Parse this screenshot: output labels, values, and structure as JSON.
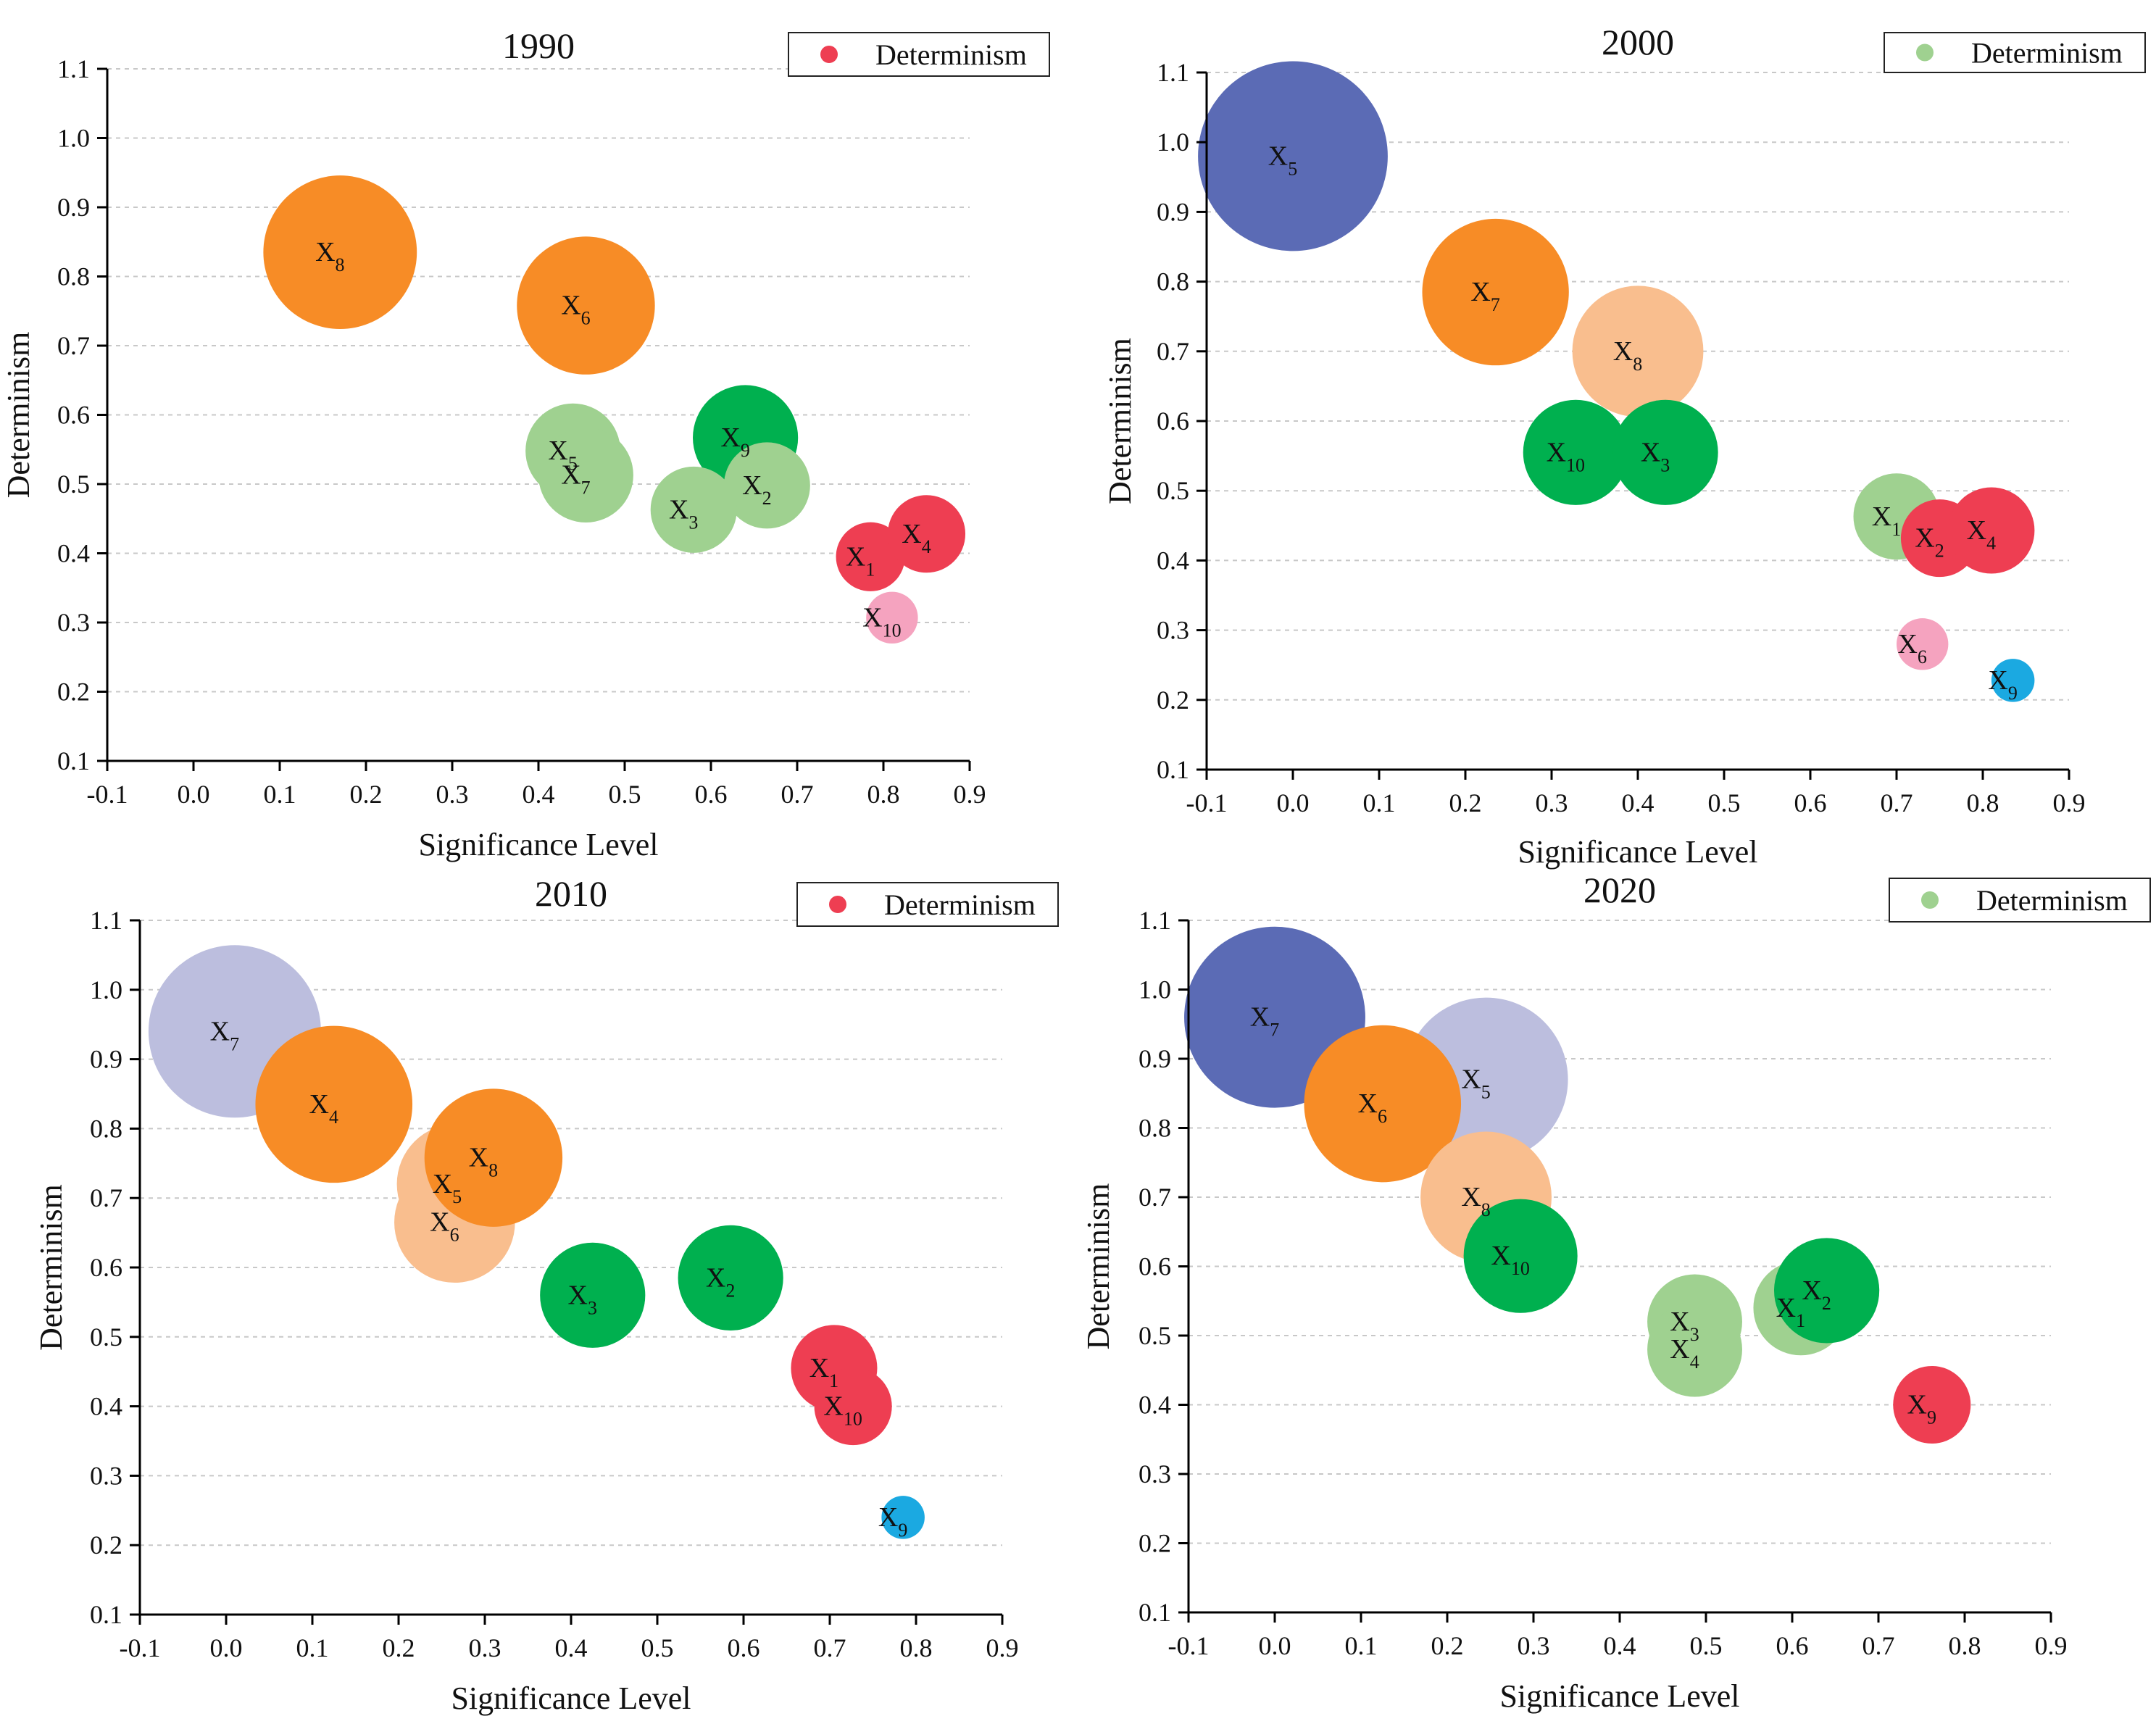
{
  "chart_data": [
    {
      "type": "bubble",
      "title": "1990",
      "xlabel": "Significance Level",
      "ylabel": "Determinism",
      "xlim": [
        -0.1,
        0.9
      ],
      "ylim": [
        0.1,
        1.1
      ],
      "xticks": [
        "-0.1",
        "0.0",
        "0.1",
        "0.2",
        "0.3",
        "0.4",
        "0.5",
        "0.6",
        "0.7",
        "0.8",
        "0.9"
      ],
      "yticks": [
        "0.1",
        "0.2",
        "0.3",
        "0.4",
        "0.5",
        "0.6",
        "0.7",
        "0.8",
        "0.9",
        "1.0",
        "1.1"
      ],
      "grid": true,
      "legend": {
        "label": "Determinism",
        "color": "#ee3e52",
        "position": "top-right"
      },
      "points": [
        {
          "label": "X",
          "sub": "8",
          "x": 0.17,
          "y": 0.835,
          "size": 0.089,
          "color": "#f78c26"
        },
        {
          "label": "X",
          "sub": "6",
          "x": 0.455,
          "y": 0.758,
          "size": 0.08,
          "color": "#f78c26"
        },
        {
          "label": "X",
          "sub": "5",
          "x": 0.44,
          "y": 0.548,
          "size": 0.055,
          "color": "#9fd190"
        },
        {
          "label": "X",
          "sub": "7",
          "x": 0.455,
          "y": 0.513,
          "size": 0.055,
          "color": "#9fd190"
        },
        {
          "label": "X",
          "sub": "9",
          "x": 0.64,
          "y": 0.567,
          "size": 0.061,
          "color": "#00b04f"
        },
        {
          "label": "X",
          "sub": "2",
          "x": 0.665,
          "y": 0.498,
          "size": 0.05,
          "color": "#9fd190"
        },
        {
          "label": "X",
          "sub": "3",
          "x": 0.58,
          "y": 0.463,
          "size": 0.05,
          "color": "#9fd190"
        },
        {
          "label": "X",
          "sub": "1",
          "x": 0.785,
          "y": 0.395,
          "size": 0.04,
          "color": "#ee3e52"
        },
        {
          "label": "X",
          "sub": "4",
          "x": 0.85,
          "y": 0.428,
          "size": 0.045,
          "color": "#ee3e52"
        },
        {
          "label": "X",
          "sub": "10",
          "x": 0.81,
          "y": 0.307,
          "size": 0.03,
          "color": "#f5a3bf"
        }
      ]
    },
    {
      "type": "bubble",
      "title": "2000",
      "xlabel": "Significance Level",
      "ylabel": "Determinism",
      "xlim": [
        -0.1,
        0.9
      ],
      "ylim": [
        0.1,
        1.1
      ],
      "xticks": [
        "-0.1",
        "0.0",
        "0.1",
        "0.2",
        "0.3",
        "0.4",
        "0.5",
        "0.6",
        "0.7",
        "0.8",
        "0.9"
      ],
      "yticks": [
        "0.1",
        "0.2",
        "0.3",
        "0.4",
        "0.5",
        "0.6",
        "0.7",
        "0.8",
        "0.9",
        "1.0",
        "1.1"
      ],
      "grid": true,
      "legend": {
        "label": "Determinism",
        "color": "#9fd190",
        "position": "top-right"
      },
      "points": [
        {
          "label": "X",
          "sub": "5",
          "x": 0.0,
          "y": 0.98,
          "size": 0.11,
          "color": "#5b6bb5"
        },
        {
          "label": "X",
          "sub": "7",
          "x": 0.235,
          "y": 0.785,
          "size": 0.085,
          "color": "#f78c26"
        },
        {
          "label": "X",
          "sub": "8",
          "x": 0.4,
          "y": 0.7,
          "size": 0.076,
          "color": "#f9be8e"
        },
        {
          "label": "X",
          "sub": "10",
          "x": 0.328,
          "y": 0.555,
          "size": 0.061,
          "color": "#00b04f"
        },
        {
          "label": "X",
          "sub": "3",
          "x": 0.432,
          "y": 0.555,
          "size": 0.061,
          "color": "#00b04f"
        },
        {
          "label": "X",
          "sub": "1",
          "x": 0.7,
          "y": 0.463,
          "size": 0.05,
          "color": "#9fd190"
        },
        {
          "label": "X",
          "sub": "2",
          "x": 0.75,
          "y": 0.432,
          "size": 0.045,
          "color": "#ee3e52"
        },
        {
          "label": "X",
          "sub": "4",
          "x": 0.81,
          "y": 0.443,
          "size": 0.05,
          "color": "#ee3e52"
        },
        {
          "label": "X",
          "sub": "6",
          "x": 0.73,
          "y": 0.28,
          "size": 0.03,
          "color": "#f5a3bf"
        },
        {
          "label": "X",
          "sub": "9",
          "x": 0.835,
          "y": 0.228,
          "size": 0.025,
          "color": "#1ba9e1"
        }
      ]
    },
    {
      "type": "bubble",
      "title": "2010",
      "xlabel": "Significance Level",
      "ylabel": "Determinism",
      "xlim": [
        -0.1,
        0.9
      ],
      "ylim": [
        0.1,
        1.1
      ],
      "xticks": [
        "-0.1",
        "0.0",
        "0.1",
        "0.2",
        "0.3",
        "0.4",
        "0.5",
        "0.6",
        "0.7",
        "0.8",
        "0.9"
      ],
      "yticks": [
        "0.1",
        "0.2",
        "0.3",
        "0.4",
        "0.5",
        "0.6",
        "0.7",
        "0.8",
        "0.9",
        "1.0",
        "1.1"
      ],
      "grid": true,
      "legend": {
        "label": "Determinism",
        "color": "#ee3e52",
        "position": "top-right"
      },
      "points": [
        {
          "label": "X",
          "sub": "7",
          "x": 0.01,
          "y": 0.94,
          "size": 0.1,
          "color": "#bcbede"
        },
        {
          "label": "X",
          "sub": "4",
          "x": 0.125,
          "y": 0.835,
          "size": 0.091,
          "color": "#f78c26"
        },
        {
          "label": "X",
          "sub": "5",
          "x": 0.268,
          "y": 0.72,
          "size": 0.07,
          "color": "#f9be8e"
        },
        {
          "label": "X",
          "sub": "6",
          "x": 0.265,
          "y": 0.665,
          "size": 0.07,
          "color": "#f9be8e"
        },
        {
          "label": "X",
          "sub": "8",
          "x": 0.31,
          "y": 0.758,
          "size": 0.08,
          "color": "#f78c26"
        },
        {
          "label": "X",
          "sub": "3",
          "x": 0.425,
          "y": 0.56,
          "size": 0.061,
          "color": "#00b04f"
        },
        {
          "label": "X",
          "sub": "2",
          "x": 0.585,
          "y": 0.585,
          "size": 0.061,
          "color": "#00b04f"
        },
        {
          "label": "X",
          "sub": "1",
          "x": 0.705,
          "y": 0.455,
          "size": 0.05,
          "color": "#ee3e52"
        },
        {
          "label": "X",
          "sub": "10",
          "x": 0.727,
          "y": 0.4,
          "size": 0.045,
          "color": "#ee3e52"
        },
        {
          "label": "X",
          "sub": "9",
          "x": 0.785,
          "y": 0.24,
          "size": 0.025,
          "color": "#1ba9e1"
        }
      ]
    },
    {
      "type": "bubble",
      "title": "2020",
      "xlabel": "Significance Level",
      "ylabel": "Determinism",
      "xlim": [
        -0.1,
        0.9
      ],
      "ylim": [
        0.1,
        1.1
      ],
      "xticks": [
        "-0.1",
        "0.0",
        "0.1",
        "0.2",
        "0.3",
        "0.4",
        "0.5",
        "0.6",
        "0.7",
        "0.8",
        "0.9"
      ],
      "yticks": [
        "0.1",
        "0.2",
        "0.3",
        "0.4",
        "0.5",
        "0.6",
        "0.7",
        "0.8",
        "0.9",
        "1.0",
        "1.1"
      ],
      "grid": true,
      "legend": {
        "label": "Determinism",
        "color": "#9fd190",
        "position": "top-right"
      },
      "points": [
        {
          "label": "X",
          "sub": "5",
          "x": 0.245,
          "y": 0.87,
          "size": 0.095,
          "color": "#bcbede"
        },
        {
          "label": "X",
          "sub": "7",
          "x": 0.0,
          "y": 0.96,
          "size": 0.105,
          "color": "#5b6bb5"
        },
        {
          "label": "X",
          "sub": "6",
          "x": 0.125,
          "y": 0.835,
          "size": 0.091,
          "color": "#f78c26"
        },
        {
          "label": "X",
          "sub": "8",
          "x": 0.245,
          "y": 0.7,
          "size": 0.076,
          "color": "#f9be8e"
        },
        {
          "label": "X",
          "sub": "10",
          "x": 0.285,
          "y": 0.615,
          "size": 0.066,
          "color": "#00b04f"
        },
        {
          "label": "X",
          "sub": "3",
          "x": 0.487,
          "y": 0.52,
          "size": 0.055,
          "color": "#9fd190"
        },
        {
          "label": "X",
          "sub": "4",
          "x": 0.487,
          "y": 0.48,
          "size": 0.055,
          "color": "#9fd190"
        },
        {
          "label": "X",
          "sub": "1",
          "x": 0.61,
          "y": 0.54,
          "size": 0.055,
          "color": "#9fd190"
        },
        {
          "label": "X",
          "sub": "2",
          "x": 0.64,
          "y": 0.565,
          "size": 0.061,
          "color": "#00b04f"
        },
        {
          "label": "X",
          "sub": "9",
          "x": 0.762,
          "y": 0.4,
          "size": 0.045,
          "color": "#ee3e52"
        }
      ]
    }
  ]
}
